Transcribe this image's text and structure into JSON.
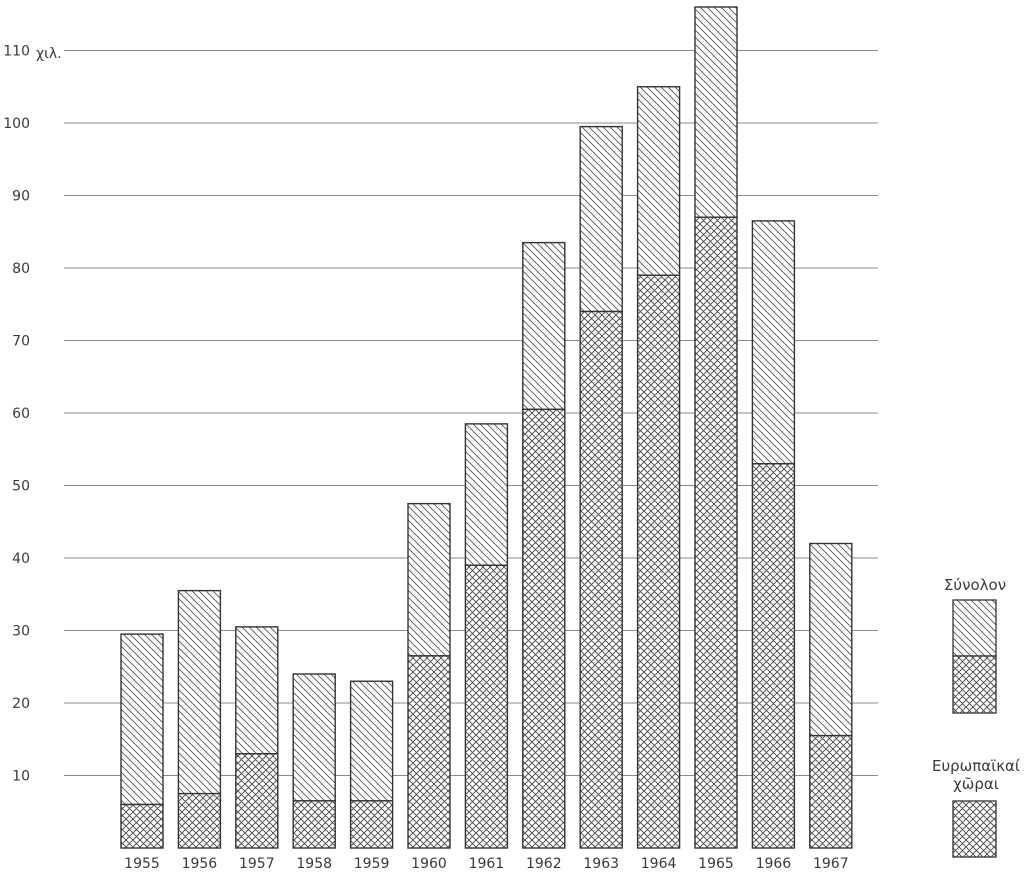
{
  "chart_data": {
    "type": "bar",
    "stacked": true,
    "title": "",
    "unit_label": "χιλ.",
    "ylim": [
      0,
      117
    ],
    "yticks": [
      10,
      20,
      30,
      40,
      50,
      60,
      70,
      80,
      90,
      100,
      110
    ],
    "grid": true,
    "categories": [
      "1955",
      "1956",
      "1957",
      "1958",
      "1959",
      "1960",
      "1961",
      "1962",
      "1963",
      "1964",
      "1965",
      "1966",
      "1967"
    ],
    "series": [
      {
        "name": "Ευρωπαϊκαί χῶραι",
        "pattern": "crosshatch",
        "values": [
          6,
          7.5,
          13,
          6.5,
          6.5,
          26.5,
          39,
          60.5,
          74,
          79,
          87,
          53,
          15.5
        ]
      },
      {
        "name": "Σύνολον",
        "pattern": "diagonal",
        "totals": [
          29.5,
          35.5,
          30.5,
          24,
          23,
          47.5,
          58.5,
          83.5,
          99.5,
          105,
          116,
          86.5,
          42
        ]
      }
    ],
    "legend": {
      "placement": "right",
      "items": [
        {
          "label_lines": [
            "Σύνολον"
          ],
          "pattern": "stacked"
        },
        {
          "label_lines": [
            "Ευρωπαϊκαί",
            "χῶραι"
          ],
          "pattern": "crosshatch"
        }
      ]
    }
  }
}
